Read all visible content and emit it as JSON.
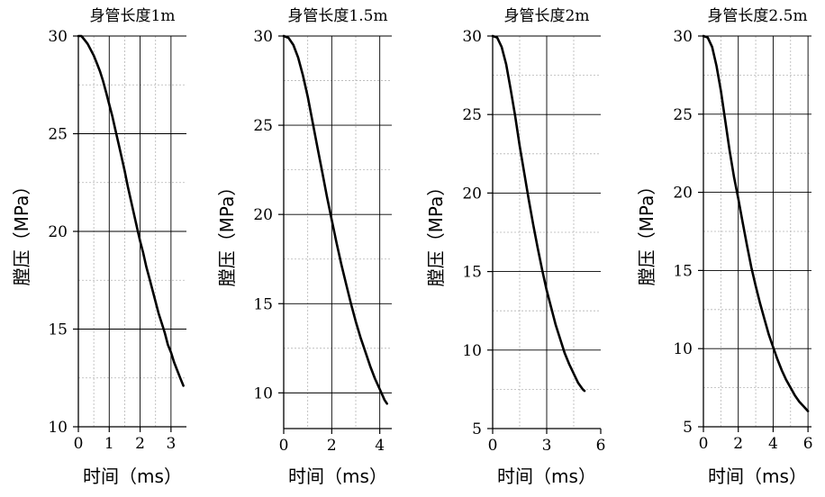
{
  "chart_data": [
    {
      "type": "line",
      "title": "身管长度1m",
      "xlabel": "时间（ms）",
      "ylabel": "膛压（MPa）",
      "xlim": [
        0,
        3.5
      ],
      "ylim": [
        10,
        30
      ],
      "xticks": [
        0,
        1,
        2,
        3
      ],
      "yticks": [
        10,
        15,
        20,
        25,
        30
      ],
      "grid": true,
      "series": [
        {
          "x": [
            0,
            0.1,
            0.2,
            0.3,
            0.4,
            0.5,
            0.6,
            0.7,
            0.8,
            0.9,
            1.0,
            1.1,
            1.2,
            1.3,
            1.4,
            1.5,
            1.6,
            1.7,
            1.8,
            1.9,
            2.0,
            2.1,
            2.2,
            2.3,
            2.4,
            2.5,
            2.6,
            2.7,
            2.8,
            2.9,
            3.0,
            3.1,
            3.2,
            3.3,
            3.4
          ],
          "y": [
            30.0,
            30.0,
            29.8,
            29.6,
            29.3,
            29.0,
            28.6,
            28.2,
            27.7,
            27.1,
            26.5,
            25.9,
            25.2,
            24.5,
            23.8,
            23.1,
            22.3,
            21.6,
            20.9,
            20.2,
            19.5,
            18.9,
            18.2,
            17.6,
            17.0,
            16.4,
            15.8,
            15.3,
            14.8,
            14.2,
            13.8,
            13.3,
            12.9,
            12.5,
            12.1
          ]
        }
      ]
    },
    {
      "type": "line",
      "title": "身管长度1.5m",
      "xlabel": "时间（ms）",
      "ylabel": "膛压（MPa）",
      "xlim": [
        0,
        4.5
      ],
      "ylim": [
        8,
        30
      ],
      "xticks": [
        0,
        2,
        4
      ],
      "yticks": [
        10,
        15,
        20,
        25,
        30
      ],
      "grid": true,
      "series": [
        {
          "x": [
            0,
            0.2,
            0.4,
            0.6,
            0.8,
            1.0,
            1.2,
            1.4,
            1.6,
            1.8,
            2.0,
            2.2,
            2.4,
            2.6,
            2.8,
            3.0,
            3.2,
            3.4,
            3.6,
            3.8,
            4.0,
            4.2,
            4.3
          ],
          "y": [
            30.0,
            29.9,
            29.5,
            28.8,
            27.8,
            26.6,
            25.2,
            23.8,
            22.4,
            21.0,
            19.7,
            18.4,
            17.2,
            16.1,
            15.0,
            14.0,
            13.1,
            12.3,
            11.5,
            10.8,
            10.2,
            9.6,
            9.4
          ]
        }
      ]
    },
    {
      "type": "line",
      "title": "身管长度2m",
      "xlabel": "时间（ms）",
      "ylabel": "膛压（MPa）",
      "xlim": [
        0,
        6
      ],
      "ylim": [
        5,
        30
      ],
      "xticks": [
        0,
        3,
        6
      ],
      "yticks": [
        5,
        10,
        15,
        20,
        25,
        30
      ],
      "grid": true,
      "series": [
        {
          "x": [
            0,
            0.25,
            0.5,
            0.75,
            1.0,
            1.25,
            1.5,
            1.75,
            2.0,
            2.25,
            2.5,
            2.75,
            3.0,
            3.25,
            3.5,
            3.75,
            4.0,
            4.25,
            4.5,
            4.75,
            5.0,
            5.1
          ],
          "y": [
            30.0,
            29.9,
            29.3,
            28.2,
            26.6,
            24.9,
            23.0,
            21.3,
            19.6,
            18.0,
            16.5,
            15.1,
            13.8,
            12.7,
            11.6,
            10.7,
            9.8,
            9.1,
            8.5,
            7.9,
            7.5,
            7.4
          ]
        }
      ]
    },
    {
      "type": "line",
      "title": "身管长度2.5m",
      "xlabel": "时间（ms）",
      "ylabel": "膛压（MPa）",
      "xlim": [
        0,
        6.2
      ],
      "ylim": [
        5,
        30
      ],
      "xticks": [
        0,
        2,
        4,
        6
      ],
      "yticks": [
        5,
        10,
        15,
        20,
        25,
        30
      ],
      "grid": true,
      "series": [
        {
          "x": [
            0,
            0.25,
            0.5,
            0.75,
            1.0,
            1.25,
            1.5,
            1.75,
            2.0,
            2.25,
            2.5,
            2.75,
            3.0,
            3.25,
            3.5,
            3.75,
            4.0,
            4.25,
            4.5,
            4.75,
            5.0,
            5.25,
            5.5,
            5.75,
            6.0
          ],
          "y": [
            30.0,
            29.9,
            29.3,
            28.1,
            26.5,
            24.6,
            22.7,
            21.0,
            19.6,
            18.1,
            16.6,
            15.2,
            14.0,
            12.9,
            11.9,
            10.9,
            10.1,
            9.3,
            8.6,
            8.0,
            7.5,
            7.0,
            6.6,
            6.3,
            6.0
          ]
        }
      ]
    }
  ]
}
